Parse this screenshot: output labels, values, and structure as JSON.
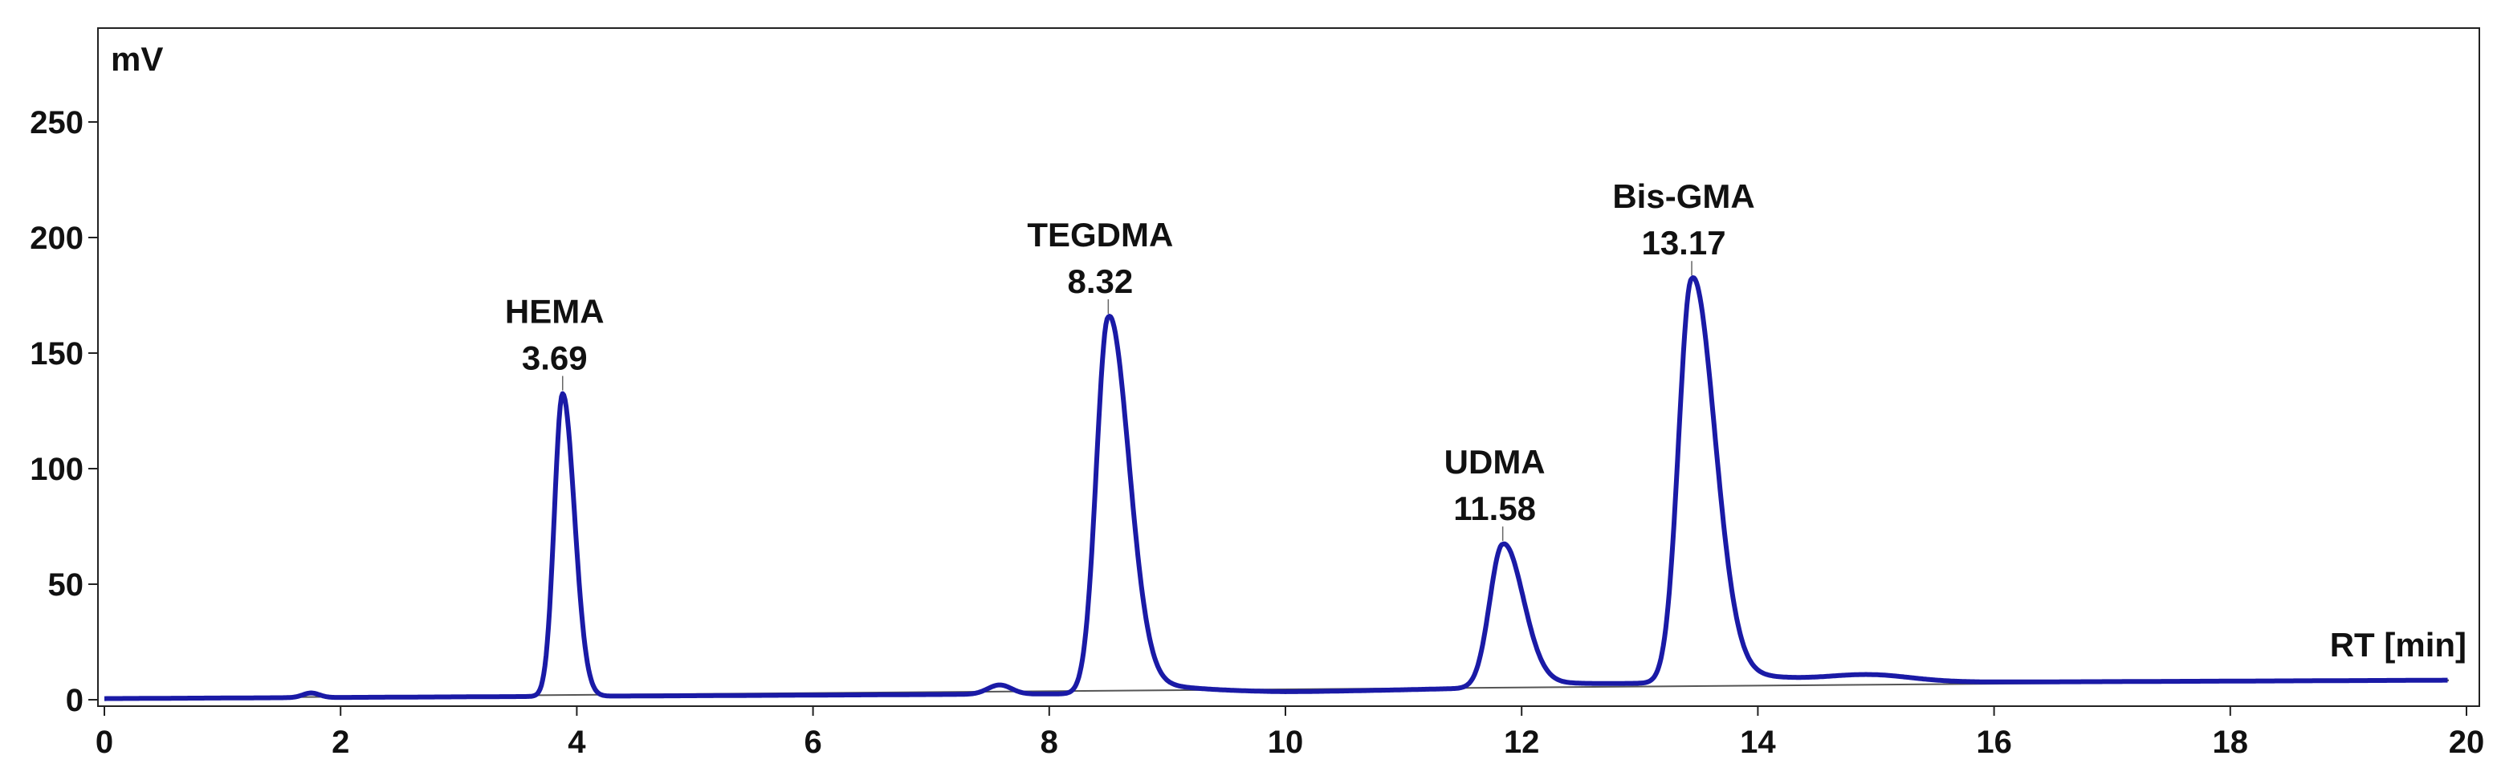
{
  "chart_data": {
    "type": "line",
    "title": "",
    "ylabel": "mV",
    "xlabel": "RT [min]",
    "xlim": [
      0,
      20
    ],
    "ylim": [
      0,
      280
    ],
    "xticks": [
      0,
      2,
      4,
      6,
      8,
      10,
      12,
      14,
      16,
      18,
      20
    ],
    "yticks": [
      0,
      50,
      100,
      150,
      200,
      250
    ],
    "grid": false,
    "line_color": "#1a1aa6",
    "baseline_color": "#555555",
    "peaks": [
      {
        "name": "HEMA",
        "rt": "3.69",
        "x": 3.88,
        "height": 131,
        "sigma_left": 0.07,
        "sigma_right": 0.1,
        "tail": 0
      },
      {
        "name": "TEGDMA",
        "rt": "8.32",
        "x": 8.5,
        "height": 163,
        "sigma_left": 0.1,
        "sigma_right": 0.17,
        "tail": 0.5
      },
      {
        "name": "UDMA",
        "rt": "11.58",
        "x": 11.84,
        "height": 62,
        "sigma_left": 0.11,
        "sigma_right": 0.17,
        "tail": 0.5
      },
      {
        "name": "Bis-GMA",
        "rt": "13.17",
        "x": 13.44,
        "height": 175,
        "sigma_left": 0.11,
        "sigma_right": 0.19,
        "tail": 0.5
      }
    ],
    "minor_peaks": [
      {
        "x": 1.75,
        "height": 2,
        "sigma": 0.07
      },
      {
        "x": 7.58,
        "height": 4,
        "sigma": 0.1
      },
      {
        "x": 14.95,
        "height": 3,
        "sigma": 0.35
      }
    ],
    "baseline": [
      [
        0,
        0.5
      ],
      [
        10,
        3
      ],
      [
        13.2,
        7
      ],
      [
        20,
        8.5
      ]
    ]
  }
}
